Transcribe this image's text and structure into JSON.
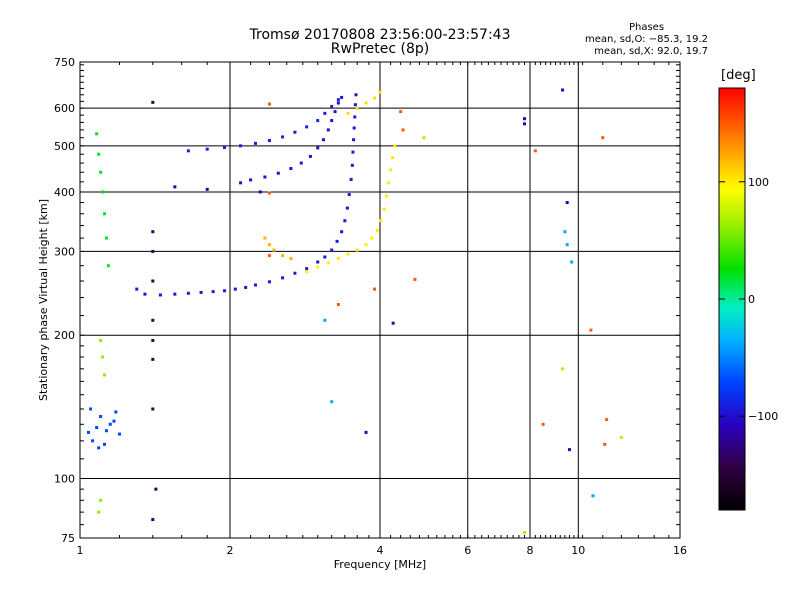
{
  "title_line1": "Tromsø 20170808 23:56:00-23:57:43",
  "title_line2": "RwPretec (8p)",
  "phases": {
    "header": "Phases",
    "line_o": "mean, sd,O: −85.3, 19.2",
    "line_x": "mean, sd,X: 92.0, 19.7"
  },
  "colorbar": {
    "title": "[deg]",
    "ticks": [
      100,
      0,
      -100
    ],
    "tick_labels": [
      "100",
      "0",
      "−100"
    ]
  },
  "chart_data": {
    "type": "scatter",
    "xlabel": "Frequency [MHz]",
    "ylabel": "Stationary phase Virtual Height [km]",
    "xscale": "log",
    "yscale": "log",
    "xlim": [
      1,
      16
    ],
    "ylim": [
      75,
      750
    ],
    "x_ticks": [
      1,
      2,
      4,
      6,
      8,
      10,
      16
    ],
    "x_tick_labels": [
      "1",
      "2",
      "4",
      "6",
      "8",
      "10",
      "16"
    ],
    "y_ticks": [
      75,
      100,
      200,
      300,
      400,
      500,
      600,
      750
    ],
    "y_tick_labels": [
      "75",
      "100",
      "200",
      "300",
      "400",
      "500",
      "600",
      "750"
    ],
    "x_major_grid": [
      2,
      4,
      6,
      8,
      10
    ],
    "y_major_grid": [
      100,
      200,
      300,
      400,
      500,
      600
    ],
    "color_scale": {
      "min": -180,
      "max": 180,
      "unit": "deg"
    },
    "traces": [
      {
        "name": "",
        "phase": -95,
        "points": [
          [
            1.3,
            250
          ],
          [
            1.35,
            244
          ],
          [
            1.45,
            243
          ],
          [
            1.55,
            244
          ],
          [
            1.65,
            245
          ],
          [
            1.75,
            246
          ],
          [
            1.85,
            247
          ],
          [
            1.95,
            248
          ],
          [
            2.05,
            250
          ],
          [
            2.15,
            252
          ],
          [
            2.25,
            255
          ],
          [
            2.4,
            259
          ],
          [
            2.55,
            264
          ],
          [
            2.7,
            270
          ],
          [
            2.85,
            276
          ],
          [
            3.0,
            285
          ],
          [
            3.1,
            292
          ],
          [
            3.2,
            302
          ],
          [
            3.28,
            315
          ],
          [
            3.35,
            330
          ],
          [
            3.4,
            348
          ],
          [
            3.44,
            370
          ],
          [
            3.47,
            395
          ],
          [
            3.5,
            425
          ],
          [
            3.52,
            455
          ],
          [
            3.53,
            485
          ],
          [
            3.54,
            515
          ],
          [
            3.55,
            545
          ],
          [
            3.56,
            575
          ],
          [
            3.57,
            610
          ],
          [
            3.58,
            640
          ]
        ]
      },
      {
        "name": "",
        "phase": -100,
        "points": [
          [
            2.1,
            418
          ],
          [
            2.2,
            424
          ],
          [
            2.35,
            430
          ],
          [
            2.5,
            438
          ],
          [
            2.65,
            448
          ],
          [
            2.78,
            460
          ],
          [
            2.9,
            475
          ],
          [
            3.0,
            495
          ],
          [
            3.08,
            515
          ],
          [
            3.15,
            540
          ],
          [
            3.2,
            565
          ],
          [
            3.25,
            590
          ],
          [
            3.3,
            615
          ],
          [
            3.35,
            632
          ]
        ]
      },
      {
        "name": "",
        "phase": -90,
        "points": [
          [
            1.65,
            488
          ],
          [
            1.8,
            492
          ],
          [
            1.95,
            496
          ],
          [
            2.1,
            500
          ],
          [
            2.25,
            506
          ],
          [
            2.4,
            513
          ],
          [
            2.55,
            522
          ],
          [
            2.7,
            534
          ],
          [
            2.85,
            548
          ],
          [
            3.0,
            565
          ],
          [
            3.1,
            585
          ],
          [
            3.2,
            605
          ],
          [
            3.3,
            625
          ]
        ]
      },
      {
        "name": "",
        "phase": 100,
        "points": [
          [
            2.85,
            272
          ],
          [
            3.0,
            278
          ],
          [
            3.15,
            284
          ],
          [
            3.3,
            290
          ],
          [
            3.45,
            296
          ],
          [
            3.6,
            302
          ],
          [
            3.75,
            310
          ],
          [
            3.85,
            320
          ],
          [
            3.95,
            332
          ],
          [
            4.02,
            348
          ],
          [
            4.08,
            368
          ],
          [
            4.12,
            392
          ],
          [
            4.16,
            418
          ],
          [
            4.2,
            445
          ],
          [
            4.24,
            472
          ],
          [
            4.28,
            500
          ]
        ]
      },
      {
        "name": "",
        "phase": 105,
        "points": [
          [
            3.45,
            585
          ],
          [
            3.6,
            600
          ],
          [
            3.75,
            615
          ],
          [
            3.9,
            630
          ],
          [
            4.0,
            648
          ]
        ]
      },
      {
        "name": "",
        "phase": 120,
        "points": [
          [
            2.35,
            320
          ],
          [
            2.4,
            310
          ],
          [
            2.45,
            302
          ],
          [
            2.55,
            294
          ],
          [
            2.65,
            290
          ]
        ]
      },
      {
        "name": "",
        "phase": -70,
        "points": [
          [
            1.04,
            125
          ],
          [
            1.06,
            120
          ],
          [
            1.08,
            128
          ],
          [
            1.1,
            135
          ],
          [
            1.12,
            118
          ],
          [
            1.15,
            130
          ],
          [
            1.18,
            138
          ],
          [
            1.2,
            124
          ],
          [
            1.05,
            140
          ],
          [
            1.09,
            116
          ],
          [
            1.13,
            126
          ],
          [
            1.17,
            132
          ]
        ]
      },
      {
        "name": "",
        "phase": 20,
        "points": [
          [
            1.08,
            530
          ],
          [
            1.09,
            480
          ],
          [
            1.1,
            440
          ],
          [
            1.11,
            400
          ],
          [
            1.12,
            360
          ],
          [
            1.13,
            320
          ],
          [
            1.14,
            280
          ]
        ]
      },
      {
        "name": "",
        "phase": 60,
        "points": [
          [
            1.1,
            195
          ],
          [
            1.11,
            180
          ],
          [
            1.12,
            165
          ],
          [
            1.1,
            90
          ],
          [
            1.09,
            85
          ]
        ]
      },
      {
        "name": "",
        "phase": -140,
        "points": [
          [
            1.4,
            617
          ],
          [
            1.4,
            330
          ],
          [
            1.4,
            300
          ],
          [
            1.4,
            260
          ],
          [
            1.4,
            215
          ],
          [
            1.4,
            195
          ],
          [
            1.4,
            178
          ],
          [
            1.4,
            140
          ],
          [
            1.42,
            95
          ],
          [
            1.4,
            82
          ]
        ]
      },
      {
        "name": "",
        "phase": 150,
        "points": [
          [
            2.4,
            612
          ],
          [
            2.4,
            398
          ],
          [
            2.4,
            294
          ],
          [
            3.3,
            232
          ],
          [
            4.4,
            590
          ],
          [
            4.7,
            262
          ],
          [
            8.2,
            488
          ],
          [
            8.5,
            130
          ],
          [
            10.6,
            205
          ],
          [
            11.2,
            520
          ],
          [
            11.4,
            133
          ],
          [
            11.3,
            118
          ],
          [
            4.45,
            540
          ],
          [
            3.9,
            250
          ]
        ]
      },
      {
        "name": "",
        "phase": -110,
        "points": [
          [
            3.75,
            125
          ],
          [
            7.8,
            570
          ],
          [
            7.8,
            556
          ],
          [
            9.5,
            380
          ],
          [
            9.6,
            115
          ],
          [
            9.3,
            655
          ],
          [
            1.55,
            410
          ],
          [
            1.8,
            405
          ],
          [
            2.3,
            400
          ],
          [
            4.25,
            212
          ]
        ]
      },
      {
        "name": "",
        "phase": -40,
        "points": [
          [
            9.4,
            330
          ],
          [
            9.5,
            310
          ],
          [
            9.7,
            285
          ],
          [
            3.1,
            215
          ],
          [
            3.2,
            145
          ],
          [
            10.7,
            92
          ]
        ]
      },
      {
        "name": "",
        "phase": 70,
        "points": [
          [
            9.3,
            170
          ],
          [
            12.2,
            122
          ],
          [
            4.9,
            520
          ],
          [
            7.8,
            77
          ]
        ]
      }
    ]
  }
}
